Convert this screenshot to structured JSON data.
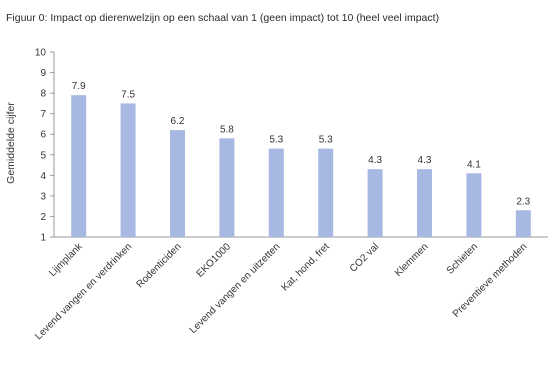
{
  "chart_data": {
    "type": "bar",
    "title": "Figuur 0: Impact op dierenwelzijn op een schaal van 1 (geen impact) tot 10 (heel veel impact)",
    "xlabel": "",
    "ylabel": "Gemiddelde cijfer",
    "ylim": [
      1,
      10
    ],
    "yticks": [
      1,
      2,
      3,
      4,
      5,
      6,
      7,
      8,
      9,
      10
    ],
    "grid": false,
    "bar_color": "#a7b9e2",
    "categories": [
      "Lijmplank",
      "Levend vangen en verdrinken",
      "Rodenticiden",
      "EKO1000",
      "Levend vangen en uitzetten",
      "Kat, hond, fret",
      "CO2 val",
      "Klemmen",
      "Schieten",
      "Preventieve methoden"
    ],
    "values": [
      7.9,
      7.5,
      6.2,
      5.8,
      5.3,
      5.3,
      4.3,
      4.3,
      4.1,
      2.3
    ],
    "data_labels": [
      "7.9",
      "7.5",
      "6.2",
      "5.8",
      "5.3",
      "5.3",
      "4.3",
      "4.3",
      "4.1",
      "2.3"
    ]
  }
}
